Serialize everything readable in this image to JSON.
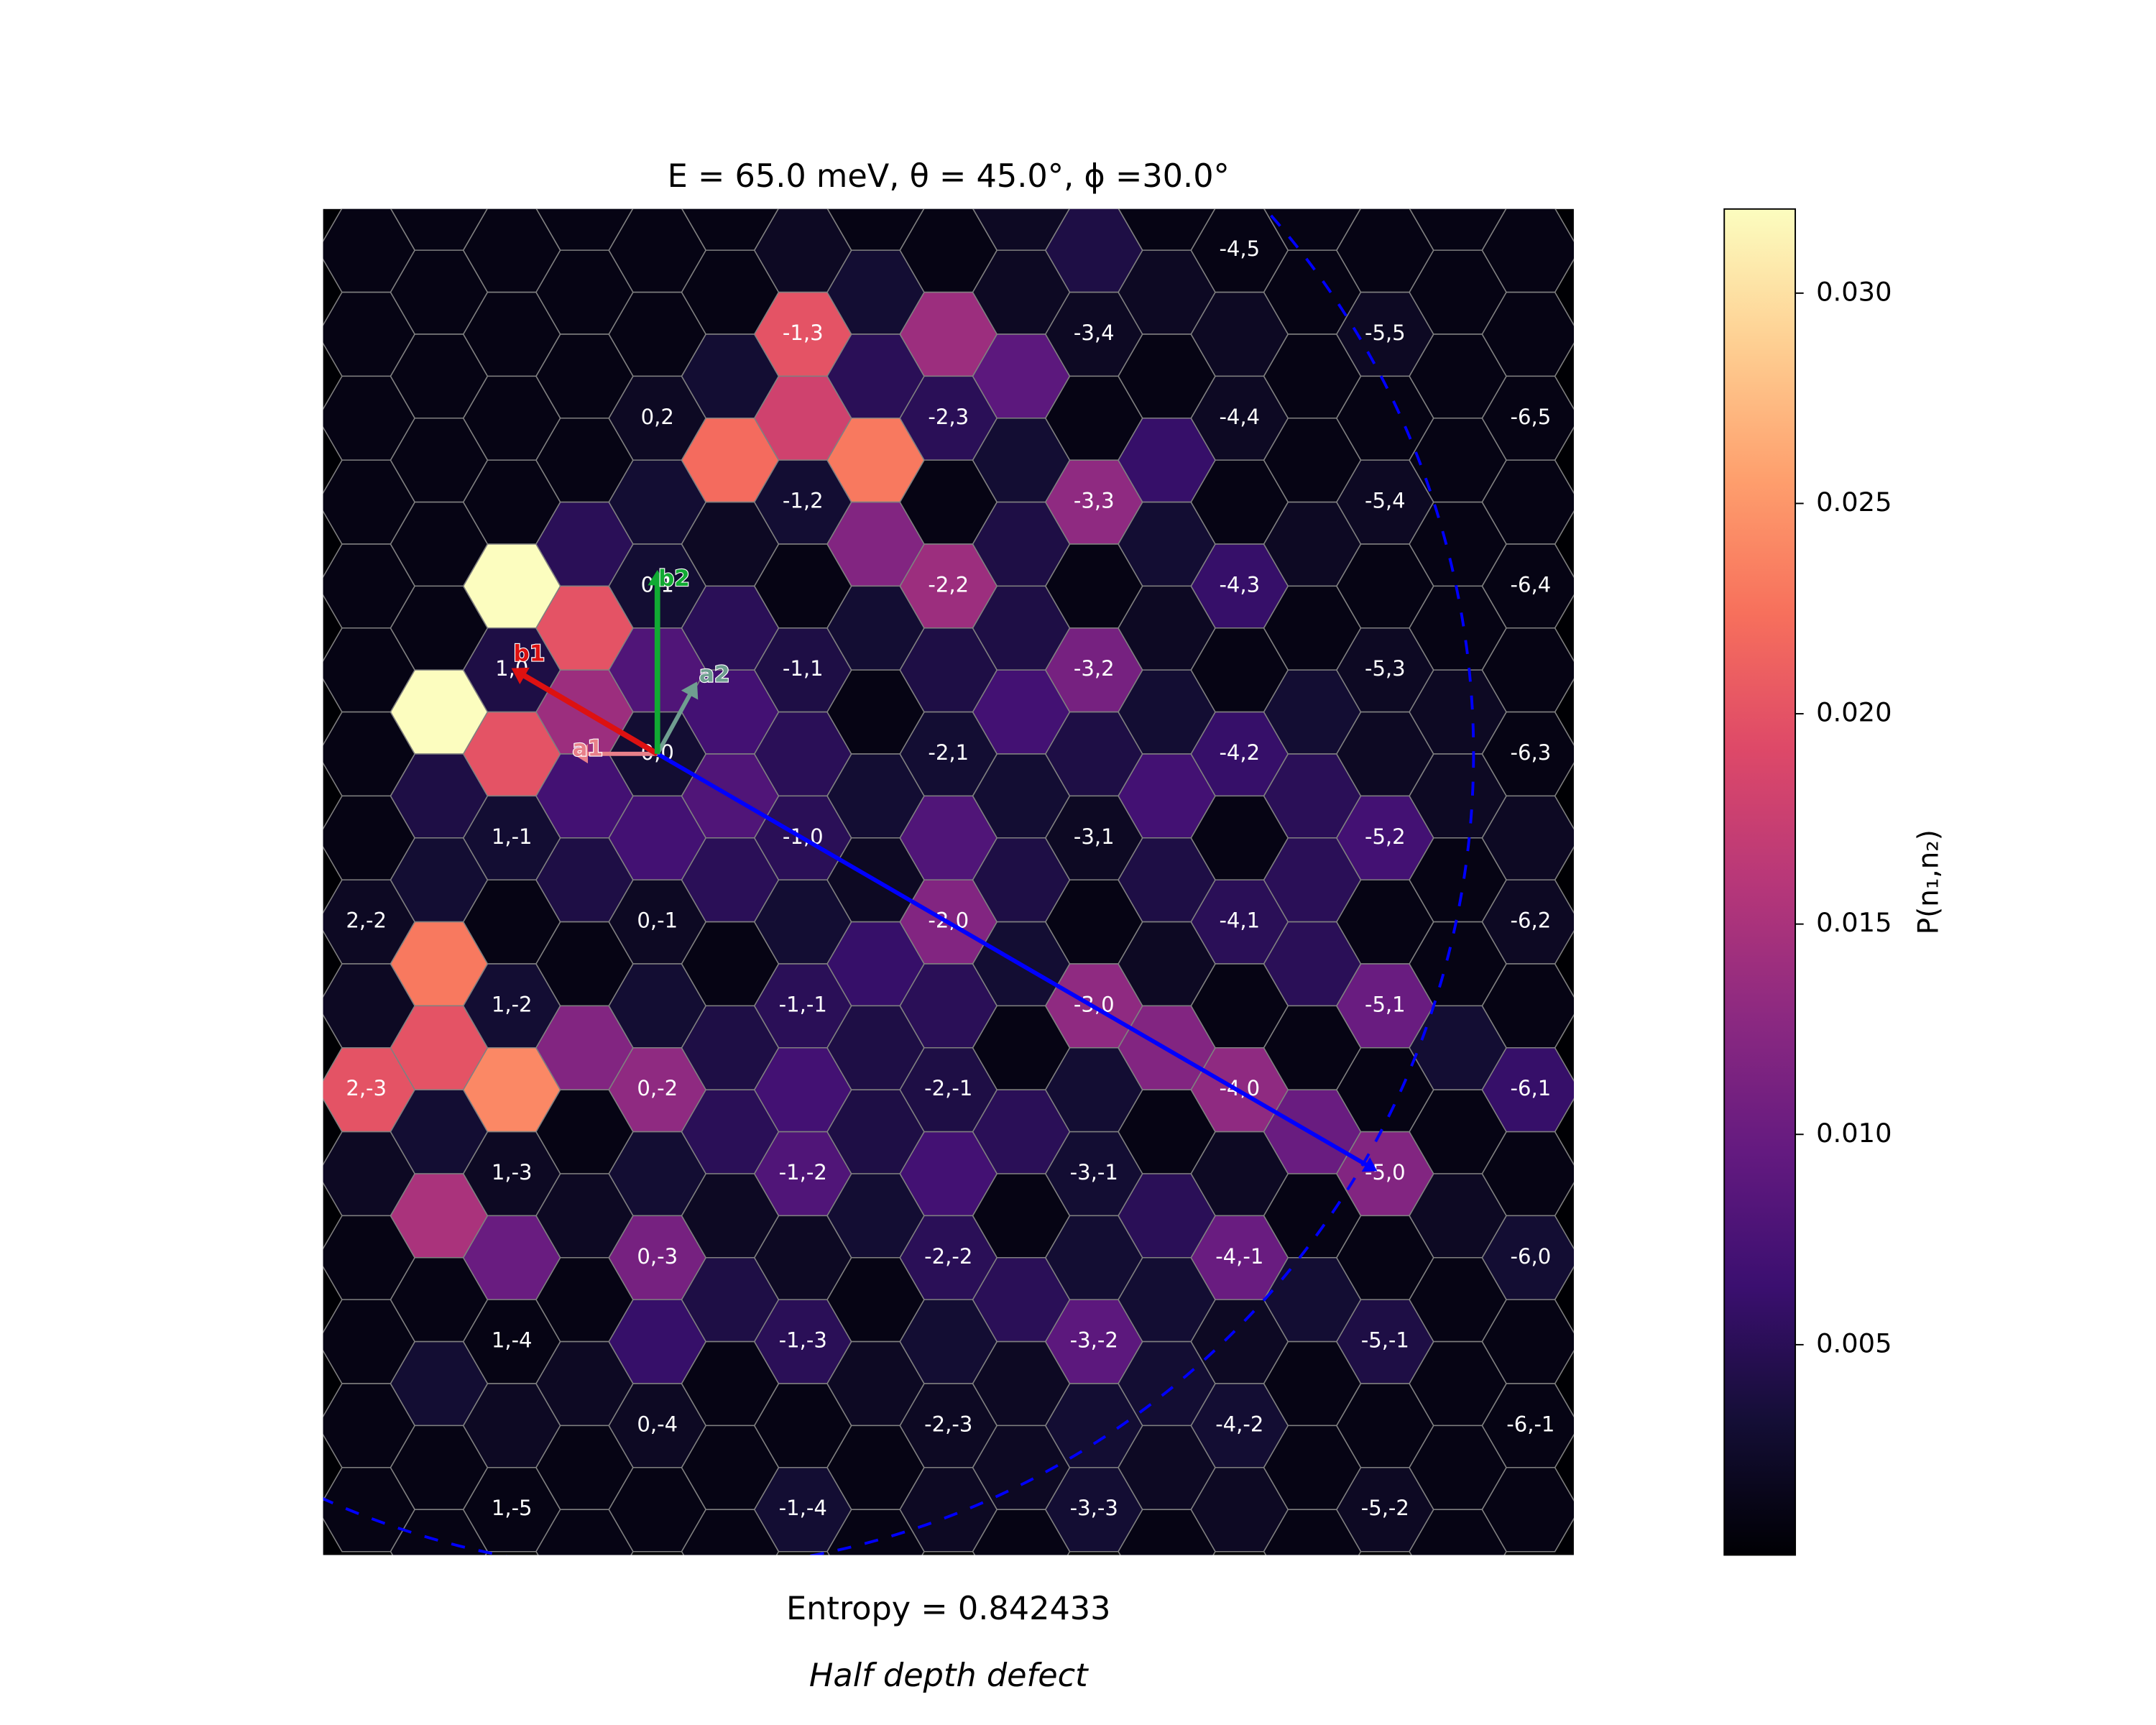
{
  "chart_data": {
    "type": "hexmap",
    "title": "E = 65.0 meV, θ = 45.0°, ϕ =30.0°",
    "colormap": "magma",
    "columns": [
      {
        "values": [
          0.001,
          0.001,
          0.001,
          0.001,
          0.001,
          0.001,
          0.001,
          0.001,
          0.002,
          0.002,
          0.02,
          0.002,
          0.001,
          0.001,
          0.001,
          0.001
        ],
        "labels": [
          null,
          null,
          null,
          null,
          null,
          null,
          null,
          null,
          "2,-2",
          null,
          "2,-3",
          null,
          null,
          null,
          null,
          null
        ]
      },
      {
        "values": [
          0.001,
          0.001,
          0.001,
          0.001,
          0.001,
          0.001,
          0.032,
          0.004,
          0.003,
          0.023,
          0.02,
          0.003,
          0.015,
          0.001,
          0.003,
          0.001,
          0.001
        ]
      },
      {
        "values": [
          0.001,
          0.001,
          0.001,
          0.001,
          0.032,
          0.004,
          0.02,
          0.003,
          0.001,
          0.003,
          0.024,
          0.002,
          0.01,
          0.001,
          0.002,
          0.001
        ],
        "labels": [
          null,
          null,
          null,
          null,
          null,
          "1,0",
          null,
          "1,-1",
          null,
          "1,-2",
          null,
          "1,-3",
          null,
          "1,-4",
          null,
          "1,-5"
        ]
      },
      {
        "values": [
          0.001,
          0.001,
          0.001,
          0.001,
          0.005,
          0.02,
          0.014,
          0.007,
          0.004,
          0.001,
          0.012,
          0.001,
          0.002,
          0.001,
          0.002,
          0.001,
          0.001
        ]
      },
      {
        "values": [
          0.001,
          0.001,
          0.002,
          0.003,
          0.003,
          0.008,
          0.003,
          0.007,
          0.002,
          0.003,
          0.013,
          0.003,
          0.011,
          0.006,
          0.002,
          0.001
        ],
        "labels": [
          null,
          null,
          "0,2",
          null,
          "0,1",
          null,
          "0,0",
          null,
          "0,-1",
          null,
          "0,-2",
          null,
          "0,-3",
          null,
          "0,-4",
          null
        ]
      },
      {
        "values": [
          0.001,
          0.001,
          0.003,
          0.022,
          0.002,
          0.005,
          0.007,
          0.008,
          0.005,
          0.001,
          0.004,
          0.005,
          0.002,
          0.004,
          0.001,
          0.001,
          0.001
        ]
      },
      {
        "values": [
          0.002,
          0.02,
          0.018,
          0.003,
          0.001,
          0.004,
          0.005,
          0.005,
          0.003,
          0.005,
          0.007,
          0.008,
          0.002,
          0.005,
          0.001,
          0.003
        ],
        "labels": [
          null,
          "-1,3",
          null,
          "-1,2",
          null,
          "-1,1",
          null,
          "-1,0",
          null,
          "-1,-1",
          null,
          "-1,-2",
          null,
          "-1,-3",
          null,
          "-1,-4"
        ]
      },
      {
        "values": [
          0.001,
          0.003,
          0.005,
          0.023,
          0.012,
          0.003,
          0.001,
          0.003,
          0.002,
          0.006,
          0.004,
          0.004,
          0.003,
          0.001,
          0.002,
          0.001,
          0.001
        ]
      },
      {
        "values": [
          0.001,
          0.014,
          0.005,
          0.001,
          0.014,
          0.004,
          0.003,
          0.008,
          0.012,
          0.005,
          0.004,
          0.007,
          0.005,
          0.003,
          0.002,
          0.002
        ],
        "labels": [
          null,
          null,
          "-2,3",
          null,
          "-2,2",
          null,
          "-2,1",
          null,
          "-2,0",
          null,
          "-2,-1",
          null,
          "-2,-2",
          null,
          "-2,-3",
          null
        ]
      },
      {
        "values": [
          0.002,
          0.002,
          0.009,
          0.003,
          0.004,
          0.004,
          0.007,
          0.003,
          0.004,
          0.003,
          0.001,
          0.005,
          0.001,
          0.005,
          0.002,
          0.002,
          0.001
        ]
      },
      {
        "values": [
          0.004,
          0.002,
          0.001,
          0.013,
          0.001,
          0.011,
          0.004,
          0.002,
          0.001,
          0.013,
          0.003,
          0.003,
          0.003,
          0.009,
          0.003,
          0.003
        ],
        "labels": [
          null,
          "-3,4",
          null,
          "-3,3",
          null,
          "-3,2",
          null,
          "-3,1",
          null,
          "-3,0",
          null,
          "-3,-1",
          null,
          "-3,-2",
          null,
          "-3,-3"
        ]
      },
      {
        "values": [
          0.001,
          0.002,
          0.001,
          0.006,
          0.003,
          0.002,
          0.003,
          0.007,
          0.004,
          0.002,
          0.012,
          0.001,
          0.005,
          0.003,
          0.003,
          0.002,
          0.001
        ]
      },
      {
        "values": [
          0.001,
          0.002,
          0.002,
          0.001,
          0.006,
          0.001,
          0.006,
          0.001,
          0.005,
          0.001,
          0.013,
          0.002,
          0.01,
          0.002,
          0.003,
          0.002
        ],
        "labels": [
          "-4,5",
          null,
          "-4,4",
          null,
          "-4,3",
          null,
          "-4,2",
          null,
          "-4,1",
          null,
          "-4,0",
          null,
          "-4,-1",
          null,
          "-4,-2",
          null
        ]
      },
      {
        "values": [
          0.001,
          0.001,
          0.001,
          0.001,
          0.002,
          0.001,
          0.003,
          0.005,
          0.005,
          0.005,
          0.001,
          0.01,
          0.001,
          0.003,
          0.001,
          0.001,
          0.001
        ]
      },
      {
        "values": [
          0.001,
          0.002,
          0.001,
          0.002,
          0.001,
          0.002,
          0.002,
          0.007,
          0.001,
          0.01,
          0.001,
          0.012,
          0.001,
          0.004,
          0.001,
          0.002
        ],
        "labels": [
          null,
          "-5,5",
          null,
          "-5,4",
          null,
          "-5,3",
          null,
          "-5,2",
          null,
          "-5,1",
          null,
          "-5,0",
          null,
          "-5,-1",
          null,
          "-5,-2"
        ]
      },
      {
        "values": [
          0.001,
          0.001,
          0.001,
          0.001,
          0.001,
          0.001,
          0.002,
          0.002,
          0.001,
          0.001,
          0.003,
          0.001,
          0.002,
          0.001,
          0.001,
          0.001,
          0.001
        ]
      },
      {
        "values": [
          0.001,
          0.001,
          0.001,
          0.001,
          0.001,
          0.001,
          0.001,
          0.002,
          0.002,
          0.001,
          0.006,
          0.001,
          0.003,
          0.001,
          0.001,
          0.001
        ],
        "labels": [
          null,
          null,
          "-6,5",
          null,
          "-6,4",
          null,
          "-6,3",
          null,
          "-6,2",
          null,
          "-6,1",
          null,
          "-6,0",
          null,
          "-6,-1",
          null
        ]
      }
    ],
    "colorbar": {
      "label": "P(n₁,n₂)",
      "lim": [
        0,
        0.032
      ],
      "ticks": [
        0.005,
        {
          "value": 0.01,
          "label": "0.010"
        },
        0.015,
        {
          "value": 0.02,
          "label": "0.020"
        },
        0.025,
        {
          "value": 0.03,
          "label": "0.030"
        }
      ]
    },
    "vectors": [
      {
        "label": "a1",
        "color": "#e8808a"
      },
      {
        "label": "a2",
        "color": "#6f9e90"
      },
      {
        "label": "b1",
        "color": "#dd1111"
      },
      {
        "label": "b2",
        "color": "#11aa33"
      }
    ],
    "footer": [
      "Entropy = 0.842433",
      "Half depth defect"
    ]
  }
}
